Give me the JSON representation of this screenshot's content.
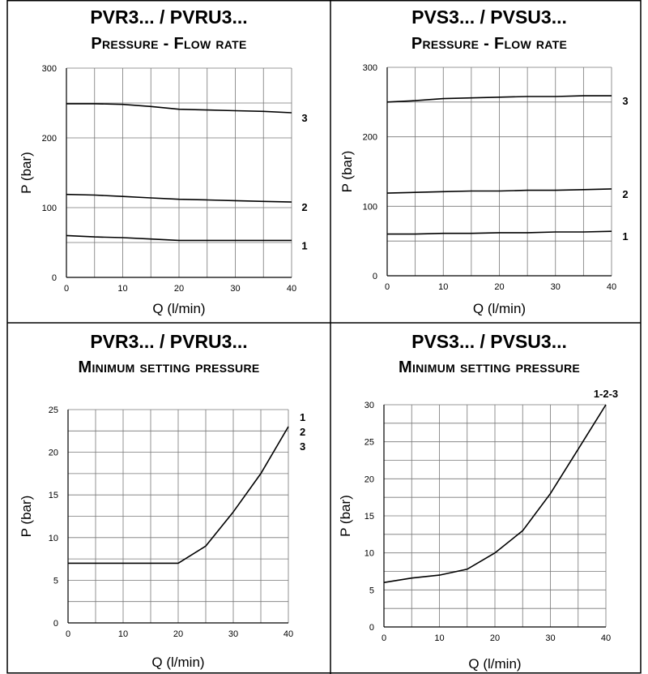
{
  "chart_data": [
    {
      "type": "line",
      "title": "PVR3... / PVRU3...",
      "subtitle": "Pressure - Flow rate",
      "xlabel": "Q (l/min)",
      "ylabel": "P (bar)",
      "xlim": [
        0,
        40
      ],
      "ylim": [
        0,
        300
      ],
      "xticks": [
        0,
        10,
        20,
        30,
        40
      ],
      "yticks": [
        0,
        100,
        200,
        300
      ],
      "x": [
        0,
        5,
        10,
        15,
        20,
        25,
        30,
        35,
        40
      ],
      "series": [
        {
          "name": "3",
          "values": [
            249,
            249,
            248,
            245,
            241,
            240,
            239,
            238,
            236
          ]
        },
        {
          "name": "2",
          "values": [
            119,
            118,
            116,
            114,
            112,
            111,
            110,
            109,
            108
          ]
        },
        {
          "name": "1",
          "values": [
            60,
            58,
            57,
            55,
            53,
            53,
            53,
            53,
            53
          ]
        }
      ],
      "grid": true
    },
    {
      "type": "line",
      "title": "PVS3... / PVSU3...",
      "subtitle": "Pressure - Flow rate",
      "xlabel": "Q (l/min)",
      "ylabel": "P (bar)",
      "xlim": [
        0,
        40
      ],
      "ylim": [
        0,
        300
      ],
      "xticks": [
        0,
        10,
        20,
        30,
        40
      ],
      "yticks": [
        0,
        100,
        200,
        300
      ],
      "x": [
        0,
        5,
        10,
        15,
        20,
        25,
        30,
        35,
        40
      ],
      "series": [
        {
          "name": "3",
          "values": [
            250,
            252,
            255,
            256,
            257,
            258,
            258,
            259,
            259
          ]
        },
        {
          "name": "2",
          "values": [
            119,
            120,
            121,
            122,
            122,
            123,
            123,
            124,
            125
          ]
        },
        {
          "name": "1",
          "values": [
            60,
            60,
            61,
            61,
            62,
            62,
            63,
            63,
            64
          ]
        }
      ],
      "grid": true
    },
    {
      "type": "line",
      "title": "PVR3... / PVRU3...",
      "subtitle": "Minimum setting pressure",
      "xlabel": "Q (l/min)",
      "ylabel": "P (bar)",
      "xlim": [
        0,
        40
      ],
      "ylim": [
        0,
        25
      ],
      "xticks": [
        0,
        10,
        20,
        30,
        40
      ],
      "yticks": [
        0,
        5,
        10,
        15,
        20,
        25
      ],
      "x": [
        0,
        20,
        25,
        30,
        35,
        40
      ],
      "series": [
        {
          "name": "1\n2\n3",
          "values": [
            7,
            7,
            9,
            13,
            17.5,
            23
          ]
        }
      ],
      "series_labels": [
        "1",
        "2",
        "3"
      ],
      "grid": true
    },
    {
      "type": "line",
      "title": "PVS3... / PVSU3...",
      "subtitle": "Minimum setting pressure",
      "xlabel": "Q (l/min)",
      "ylabel": "P (bar)",
      "xlim": [
        0,
        40
      ],
      "ylim": [
        0,
        30
      ],
      "xticks": [
        0,
        10,
        20,
        30,
        40
      ],
      "yticks": [
        0,
        5,
        10,
        15,
        20,
        25,
        30
      ],
      "x": [
        0,
        5,
        10,
        15,
        20,
        25,
        30,
        35,
        40
      ],
      "series": [
        {
          "name": "1-2-3",
          "values": [
            6,
            6.6,
            7,
            7.8,
            10,
            13,
            18,
            24,
            30
          ]
        }
      ],
      "series_labels": [
        "1-2-3"
      ],
      "grid": true
    }
  ]
}
